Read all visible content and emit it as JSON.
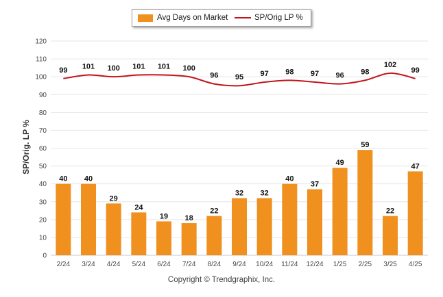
{
  "colors": {
    "bar": "#f0901e",
    "line": "#c0151b",
    "grid": "#e6e6e6"
  },
  "chart_data": {
    "type": "bar",
    "title": "",
    "xlabel": "",
    "ylabel": "SP/Orig. LP %",
    "ylim": [
      0,
      120
    ],
    "yticks": [
      0,
      10,
      20,
      30,
      40,
      50,
      60,
      70,
      80,
      90,
      100,
      110,
      120
    ],
    "grid": true,
    "legend_position": "top-center",
    "categories": [
      "2/24",
      "3/24",
      "4/24",
      "5/24",
      "6/24",
      "7/24",
      "8/24",
      "9/24",
      "10/24",
      "11/24",
      "12/24",
      "1/25",
      "2/25",
      "3/25",
      "4/25"
    ],
    "series": [
      {
        "name": "Avg Days on Market",
        "type": "bar",
        "values": [
          40,
          40,
          29,
          24,
          19,
          18,
          22,
          32,
          32,
          40,
          37,
          49,
          59,
          22,
          47
        ]
      },
      {
        "name": "SP/Orig LP %",
        "type": "line",
        "values": [
          99,
          101,
          100,
          101,
          101,
          100,
          96,
          95,
          97,
          98,
          97,
          96,
          98,
          102,
          99
        ]
      }
    ]
  },
  "footer": {
    "copyright": "Copyright © Trendgraphix, Inc."
  }
}
